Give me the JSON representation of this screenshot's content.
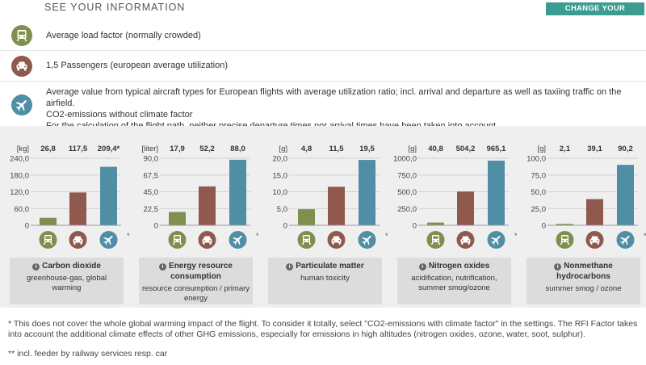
{
  "header": {
    "title": "SEE YOUR INFORMATION",
    "settings_button": "CHANGE YOUR SETTINGS"
  },
  "info": {
    "train": {
      "icon": "train-icon",
      "text": "Average load factor (normally crowded)"
    },
    "car": {
      "icon": "car-icon",
      "text": "1,5 Passengers (european average utilization)"
    },
    "plane": {
      "icon": "plane-icon",
      "line1": "Average value from typical aircraft types for European flights with average utilization ratio; incl. arrival and departure as well as taxiing traffic on the airfield.",
      "line2": "CO2-emissions without climate factor",
      "line3": "For the calculation of the flight path, neither precise departure times nor arrival times have been taken into account."
    }
  },
  "colors": {
    "train": "#7f8f4e",
    "car": "#8f5a4d",
    "plane": "#4f8ea4",
    "accent": "#3c9c91"
  },
  "chart_data": [
    {
      "type": "bar",
      "unit": "[kg]",
      "categories": [
        "train",
        "car",
        "plane"
      ],
      "labels": [
        "26,8",
        "117,5",
        "209,4*"
      ],
      "values": [
        26.8,
        117.5,
        209.4
      ],
      "ylim": [
        0,
        240
      ],
      "ticks": [
        "240,0",
        "180,0",
        "120,0",
        "60,0",
        "0"
      ],
      "title": "Carbon dioxide",
      "subtitle": "greenhouse-gas, global warming"
    },
    {
      "type": "bar",
      "unit": "[liter]",
      "categories": [
        "train",
        "car",
        "plane"
      ],
      "labels": [
        "17,9",
        "52,2",
        "88,0"
      ],
      "values": [
        17.9,
        52.2,
        88.0
      ],
      "ylim": [
        0,
        90
      ],
      "ticks": [
        "90,0",
        "67,5",
        "45,0",
        "22,5",
        "0"
      ],
      "title": "Energy resource consumption",
      "subtitle": "resource consumption / primary energy"
    },
    {
      "type": "bar",
      "unit": "[g]",
      "categories": [
        "train",
        "car",
        "plane"
      ],
      "labels": [
        "4,8",
        "11,5",
        "19,5"
      ],
      "values": [
        4.8,
        11.5,
        19.5
      ],
      "ylim": [
        0,
        20
      ],
      "ticks": [
        "20,0",
        "15,0",
        "10,0",
        "5,0",
        "0"
      ],
      "title": "Particulate matter",
      "subtitle": "human toxicity"
    },
    {
      "type": "bar",
      "unit": "[g]",
      "categories": [
        "train",
        "car",
        "plane"
      ],
      "labels": [
        "40,8",
        "504,2",
        "965,1"
      ],
      "values": [
        40.8,
        504.2,
        965.1
      ],
      "ylim": [
        0,
        1000
      ],
      "ticks": [
        "1000,0",
        "750,0",
        "500,0",
        "250,0",
        "0"
      ],
      "title": "Nitrogen oxides",
      "subtitle": "acidification, nutrification, summer smog/ozone"
    },
    {
      "type": "bar",
      "unit": "[g]",
      "categories": [
        "train",
        "car",
        "plane"
      ],
      "labels": [
        "2,1",
        "39,1",
        "90,2"
      ],
      "values": [
        2.1,
        39.1,
        90.2
      ],
      "ylim": [
        0,
        100
      ],
      "ticks": [
        "100,0",
        "75,0",
        "50,0",
        "25,0",
        "0"
      ],
      "title": "Nonmethane hydrocarbons",
      "subtitle": "summer smog / ozone"
    }
  ],
  "double_star": "**",
  "info_glyph": "i",
  "footnotes": {
    "star": "* This does not cover the whole global warming impact of the flight. To consider it totally, select \"CO2-emissions with climate factor\" in the settings. The RFI Factor takes into account the additional climate effects of other GHG emissions, especially for emissions in high altitudes (nitrogen oxides, ozone, water, soot, sulphur).",
    "double_star": "** incl. feeder by railway services resp. car"
  }
}
